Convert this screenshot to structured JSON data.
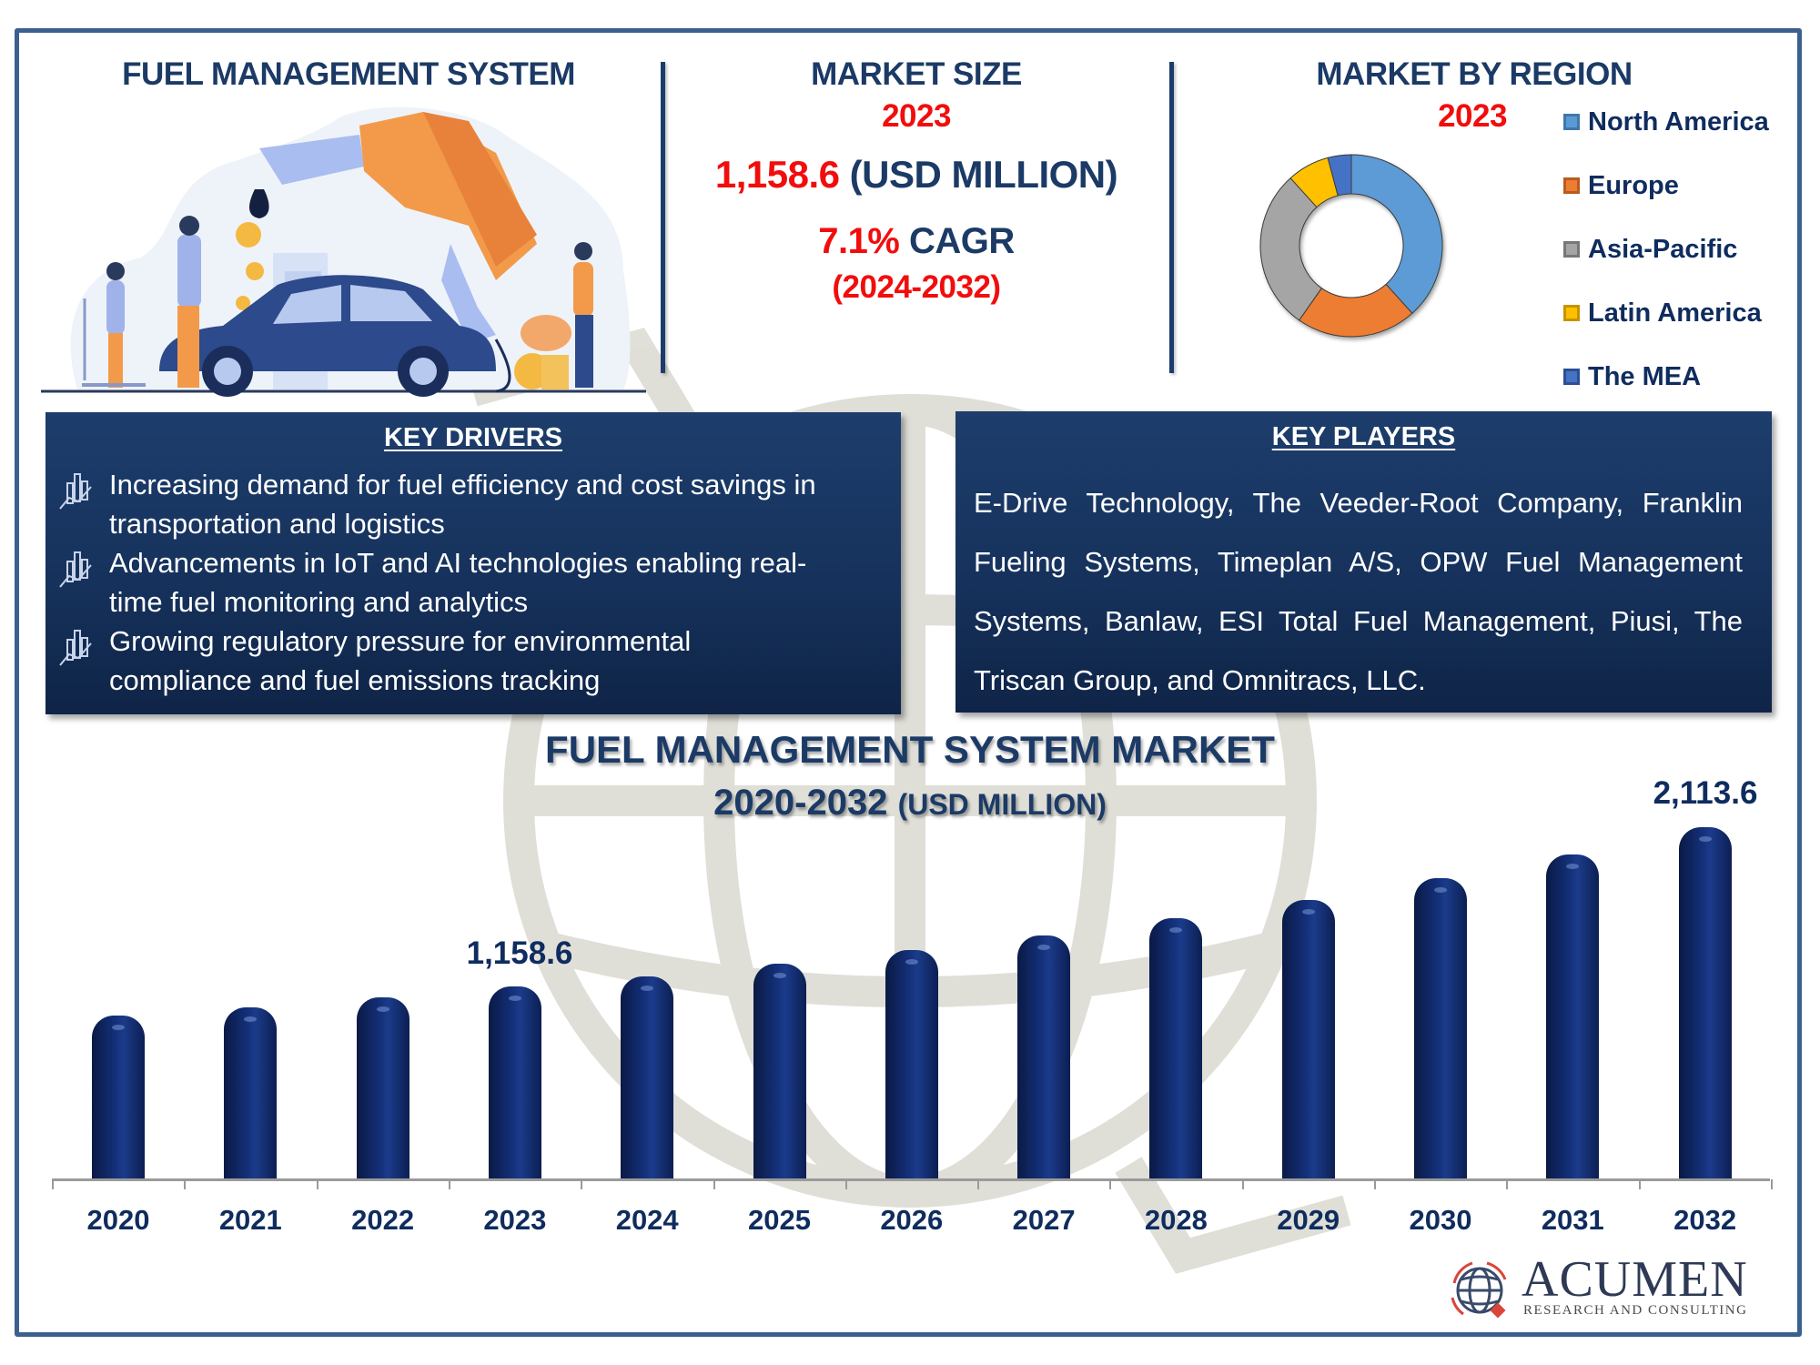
{
  "header": {
    "left_title": "FUEL MANAGEMENT SYSTEM",
    "illustration": "fuel-nozzle-car-illustration"
  },
  "market_size": {
    "title": "MARKET SIZE",
    "year": "2023",
    "value": "1,158.6",
    "unit": "(USD MILLION)",
    "cagr_value": "7.1%",
    "cagr_label": "CAGR",
    "cagr_period": "(2024-2032)"
  },
  "region": {
    "title": "MARKET BY REGION",
    "year": "2023",
    "legend": [
      {
        "label": "North America",
        "color": "#5b9bd5"
      },
      {
        "label": "Europe",
        "color": "#ed7d31"
      },
      {
        "label": "Asia-Pacific",
        "color": "#a5a5a5"
      },
      {
        "label": "Latin America",
        "color": "#ffc000"
      },
      {
        "label": "The MEA",
        "color": "#4472c4"
      }
    ]
  },
  "key_drivers": {
    "title": "KEY DRIVERS",
    "bullet_icon": "bar-chart-trend-icon",
    "items": [
      {
        "line1": "Increasing demand for fuel efficiency and cost savings in",
        "line2": "transportation and logistics"
      },
      {
        "line1": "Advancements in IoT and AI technologies enabling real-",
        "line2": "time fuel monitoring and analytics"
      },
      {
        "line1": "Growing regulatory pressure for environmental",
        "line2": "compliance and fuel emissions tracking"
      }
    ]
  },
  "key_players": {
    "title": "KEY PLAYERS",
    "text": "E-Drive Technology, The Veeder-Root Company, Franklin Fueling Systems, Timeplan A/S, OPW Fuel Management Systems, Banlaw, ESI Total Fuel Management, Piusi, The Triscan Group, and Omnitracs, LLC."
  },
  "chart": {
    "title_line1": "FUEL MANAGEMENT SYSTEM MARKET",
    "title_years": "2020-2032",
    "title_unit": "(USD MILLION)",
    "label_2023": "1,158.6",
    "label_2032": "2,113.6",
    "bar_color": "#14307a"
  },
  "logo": {
    "name": "ACUMEN",
    "tagline": "RESEARCH AND CONSULTING"
  },
  "chart_data": [
    {
      "type": "bar",
      "title": "FUEL MANAGEMENT SYSTEM MARKET 2020-2032 (USD MILLION)",
      "xlabel": "",
      "ylabel": "USD Million",
      "categories": [
        "2020",
        "2021",
        "2022",
        "2023",
        "2024",
        "2025",
        "2026",
        "2027",
        "2028",
        "2029",
        "2030",
        "2031",
        "2032"
      ],
      "values": [
        983,
        1032,
        1092,
        1158.6,
        1218,
        1294,
        1376,
        1463,
        1567,
        1676,
        1807,
        1950,
        2113.6
      ],
      "data_labels": {
        "2023": "1,158.6",
        "2032": "2,113.6"
      },
      "ylim": [
        0,
        2200
      ],
      "grid": false,
      "legend": null
    },
    {
      "type": "pie",
      "variant": "donut",
      "title": "MARKET BY REGION 2023",
      "categories": [
        "North America",
        "Europe",
        "Asia-Pacific",
        "Latin America",
        "The MEA"
      ],
      "values": [
        38,
        27,
        23,
        7,
        5
      ],
      "value_note": "approximate share (%) estimated from slice angles; not labeled",
      "legend_position": "right"
    }
  ]
}
